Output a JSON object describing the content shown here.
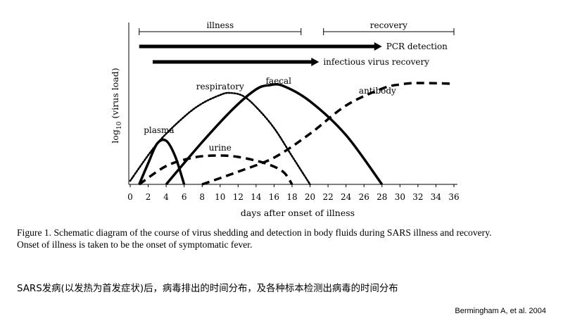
{
  "chart_data": {
    "type": "line",
    "xlabel": "days after onset of illness",
    "ylabel_prefix": "log",
    "ylabel_sub": "10",
    "ylabel_suffix": " (virus load)",
    "xlim": [
      0,
      36
    ],
    "xticks": [
      0,
      2,
      4,
      6,
      8,
      10,
      12,
      14,
      16,
      18,
      20,
      22,
      24,
      26,
      28,
      30,
      32,
      34,
      36
    ],
    "grid": false,
    "phases": [
      {
        "name": "illness",
        "start": 1,
        "end": 19
      },
      {
        "name": "recovery",
        "start": 21.5,
        "end": 36
      }
    ],
    "detection_arrows": [
      {
        "name": "PCR detection",
        "start": 1,
        "end": 28
      },
      {
        "name": "infectious virus recovery",
        "start": 2.5,
        "end": 21
      }
    ],
    "series": [
      {
        "name": "plasma",
        "style": "solid",
        "points": [
          [
            1,
            0
          ],
          [
            2,
            30
          ],
          [
            3,
            58
          ],
          [
            4,
            62
          ],
          [
            5,
            40
          ],
          [
            6,
            0
          ]
        ]
      },
      {
        "name": "respiratory",
        "style": "dotted",
        "points": [
          [
            0,
            5
          ],
          [
            3,
            58
          ],
          [
            6,
            96
          ],
          [
            8,
            115
          ],
          [
            10,
            127
          ],
          [
            11,
            130
          ],
          [
            12.5,
            126
          ],
          [
            14,
            110
          ],
          [
            16,
            80
          ],
          [
            18,
            40
          ],
          [
            20,
            0
          ]
        ]
      },
      {
        "name": "faecal",
        "style": "solid",
        "points": [
          [
            4,
            0
          ],
          [
            8,
            60
          ],
          [
            11.5,
            108
          ],
          [
            14,
            135
          ],
          [
            15.5,
            141
          ],
          [
            17,
            140
          ],
          [
            20,
            118
          ],
          [
            24,
            70
          ],
          [
            28,
            0
          ]
        ]
      },
      {
        "name": "urine",
        "style": "dashed",
        "points": [
          [
            1,
            0
          ],
          [
            4,
            26
          ],
          [
            7,
            38
          ],
          [
            9.5,
            41
          ],
          [
            12,
            39
          ],
          [
            15,
            30
          ],
          [
            17,
            18
          ],
          [
            18,
            0
          ]
        ]
      },
      {
        "name": "antibody",
        "style": "dashed",
        "points": [
          [
            8,
            0
          ],
          [
            12,
            18
          ],
          [
            16,
            38
          ],
          [
            20,
            72
          ],
          [
            24,
            112
          ],
          [
            28,
            136
          ],
          [
            30,
            142
          ],
          [
            32,
            144
          ],
          [
            36,
            143
          ]
        ]
      }
    ]
  },
  "caption": {
    "line1": "Figure 1.  Schematic diagram of the course of virus shedding and detection in body fluids during SARS illness and recovery.",
    "line2": "Onset of illness is taken to be the onset of symptomatic fever."
  },
  "subtitle": "SARS发病(以发热为首发症状)后，病毒排出的时间分布，及各种标本检测出病毒的时间分布",
  "citation": "Bermingham  A, et al. 2004"
}
